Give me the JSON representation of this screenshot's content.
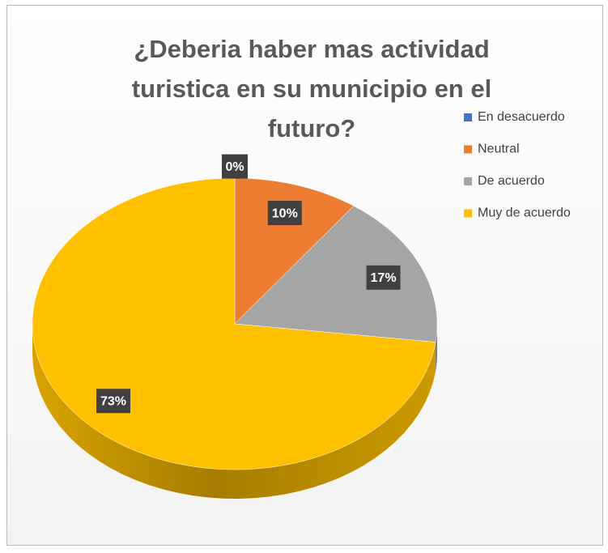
{
  "chart_data": {
    "type": "pie",
    "title": "¿Deberia haber mas actividad turistica en su municipio en el futuro?",
    "categories": [
      "En desacuerdo",
      "Neutral",
      "De acuerdo",
      "Muy de acuerdo"
    ],
    "values": [
      0,
      10,
      17,
      73
    ],
    "value_labels": [
      "0%",
      "10%",
      "17%",
      "73%"
    ],
    "colors": [
      "#4472c4",
      "#ed7d31",
      "#a5a5a5",
      "#ffc000"
    ],
    "legend": "right"
  }
}
